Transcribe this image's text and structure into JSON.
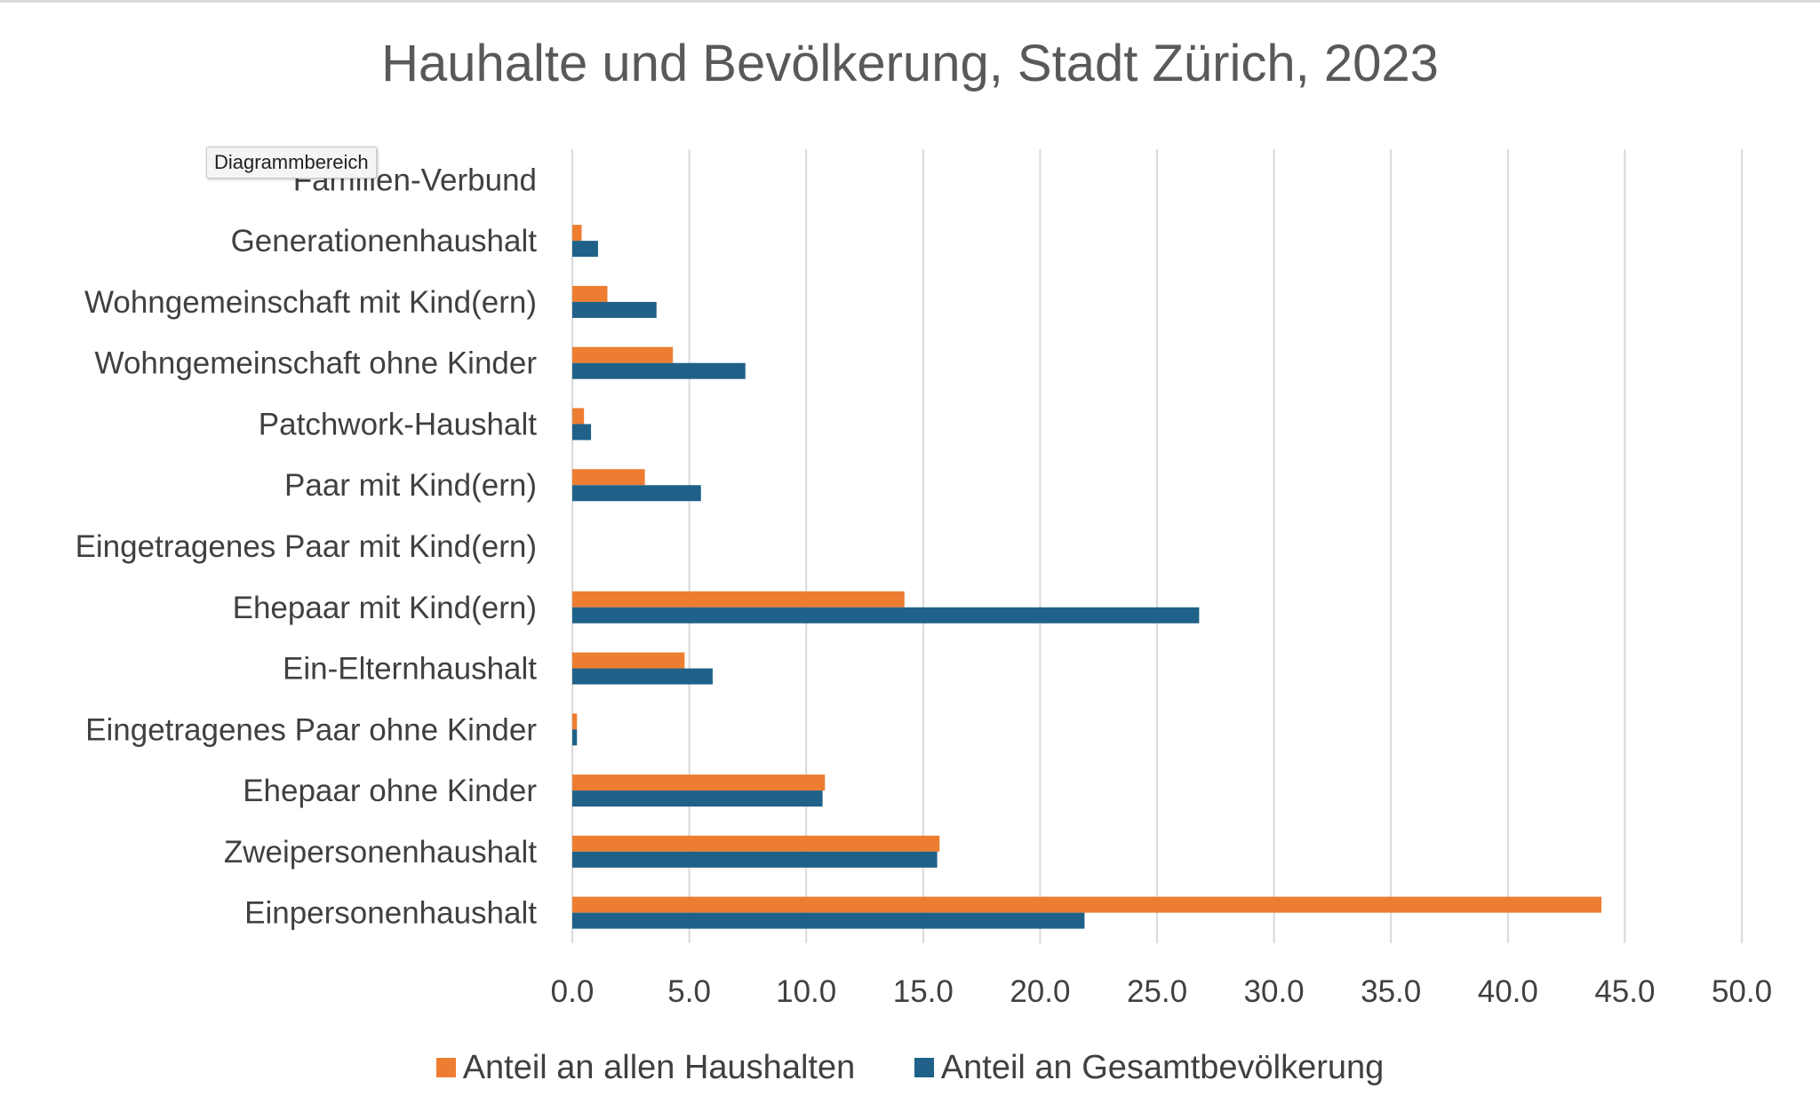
{
  "chart_data": {
    "type": "bar",
    "orientation": "horizontal",
    "title": "Hauhalte und Bevölkerung, Stadt Zürich, 2023",
    "categories": [
      "Familien-Verbund",
      "Generationenhaushalt",
      "Wohngemeinschaft mit Kind(ern)",
      "Wohngemeinschaft ohne Kinder",
      "Patchwork-Haushalt",
      "Paar mit Kind(ern)",
      "Eingetragenes Paar mit Kind(ern)",
      "Ehepaar mit Kind(ern)",
      "Ein-Elternhaushalt",
      "Eingetragenes Paar ohne Kinder",
      "Ehepaar ohne Kinder",
      "Zweipersonenhaushalt",
      "Einpersonenhaushalt"
    ],
    "series": [
      {
        "name": "Anteil an allen Haushalten",
        "color": "#ED7D31",
        "values": [
          0.0,
          0.4,
          1.5,
          4.3,
          0.5,
          3.1,
          0.0,
          14.2,
          4.8,
          0.2,
          10.8,
          15.7,
          44.0
        ]
      },
      {
        "name": "Anteil an Gesamtbevölkerung",
        "color": "#1F6188",
        "values": [
          0.0,
          1.1,
          3.6,
          7.4,
          0.8,
          5.5,
          0.0,
          26.8,
          6.0,
          0.2,
          10.7,
          15.6,
          21.9
        ]
      }
    ],
    "xlim": [
      0,
      50
    ],
    "x_ticks": [
      "0.0",
      "5.0",
      "10.0",
      "15.0",
      "20.0",
      "25.0",
      "30.0",
      "35.0",
      "40.0",
      "45.0",
      "50.0"
    ],
    "grid": "vertical",
    "legend_position": "bottom"
  },
  "tooltip": {
    "text": "Diagrammbereich"
  }
}
